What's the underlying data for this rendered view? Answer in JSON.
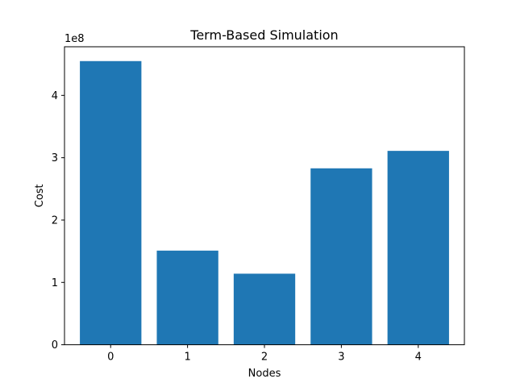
{
  "chart_data": {
    "type": "bar",
    "title": "Term-Based Simulation",
    "xlabel": "Nodes",
    "ylabel": "Cost",
    "y_offset_label": "1e8",
    "categories": [
      "0",
      "1",
      "2",
      "3",
      "4"
    ],
    "values": [
      455000000,
      151000000,
      114000000,
      283000000,
      311000000
    ],
    "ylim": [
      0,
      478000000
    ],
    "yticks": [
      0,
      100000000,
      200000000,
      300000000,
      400000000
    ],
    "ytick_labels": [
      "0",
      "1",
      "2",
      "3",
      "4"
    ],
    "grid": false,
    "bar_color": "#1f77b4"
  }
}
